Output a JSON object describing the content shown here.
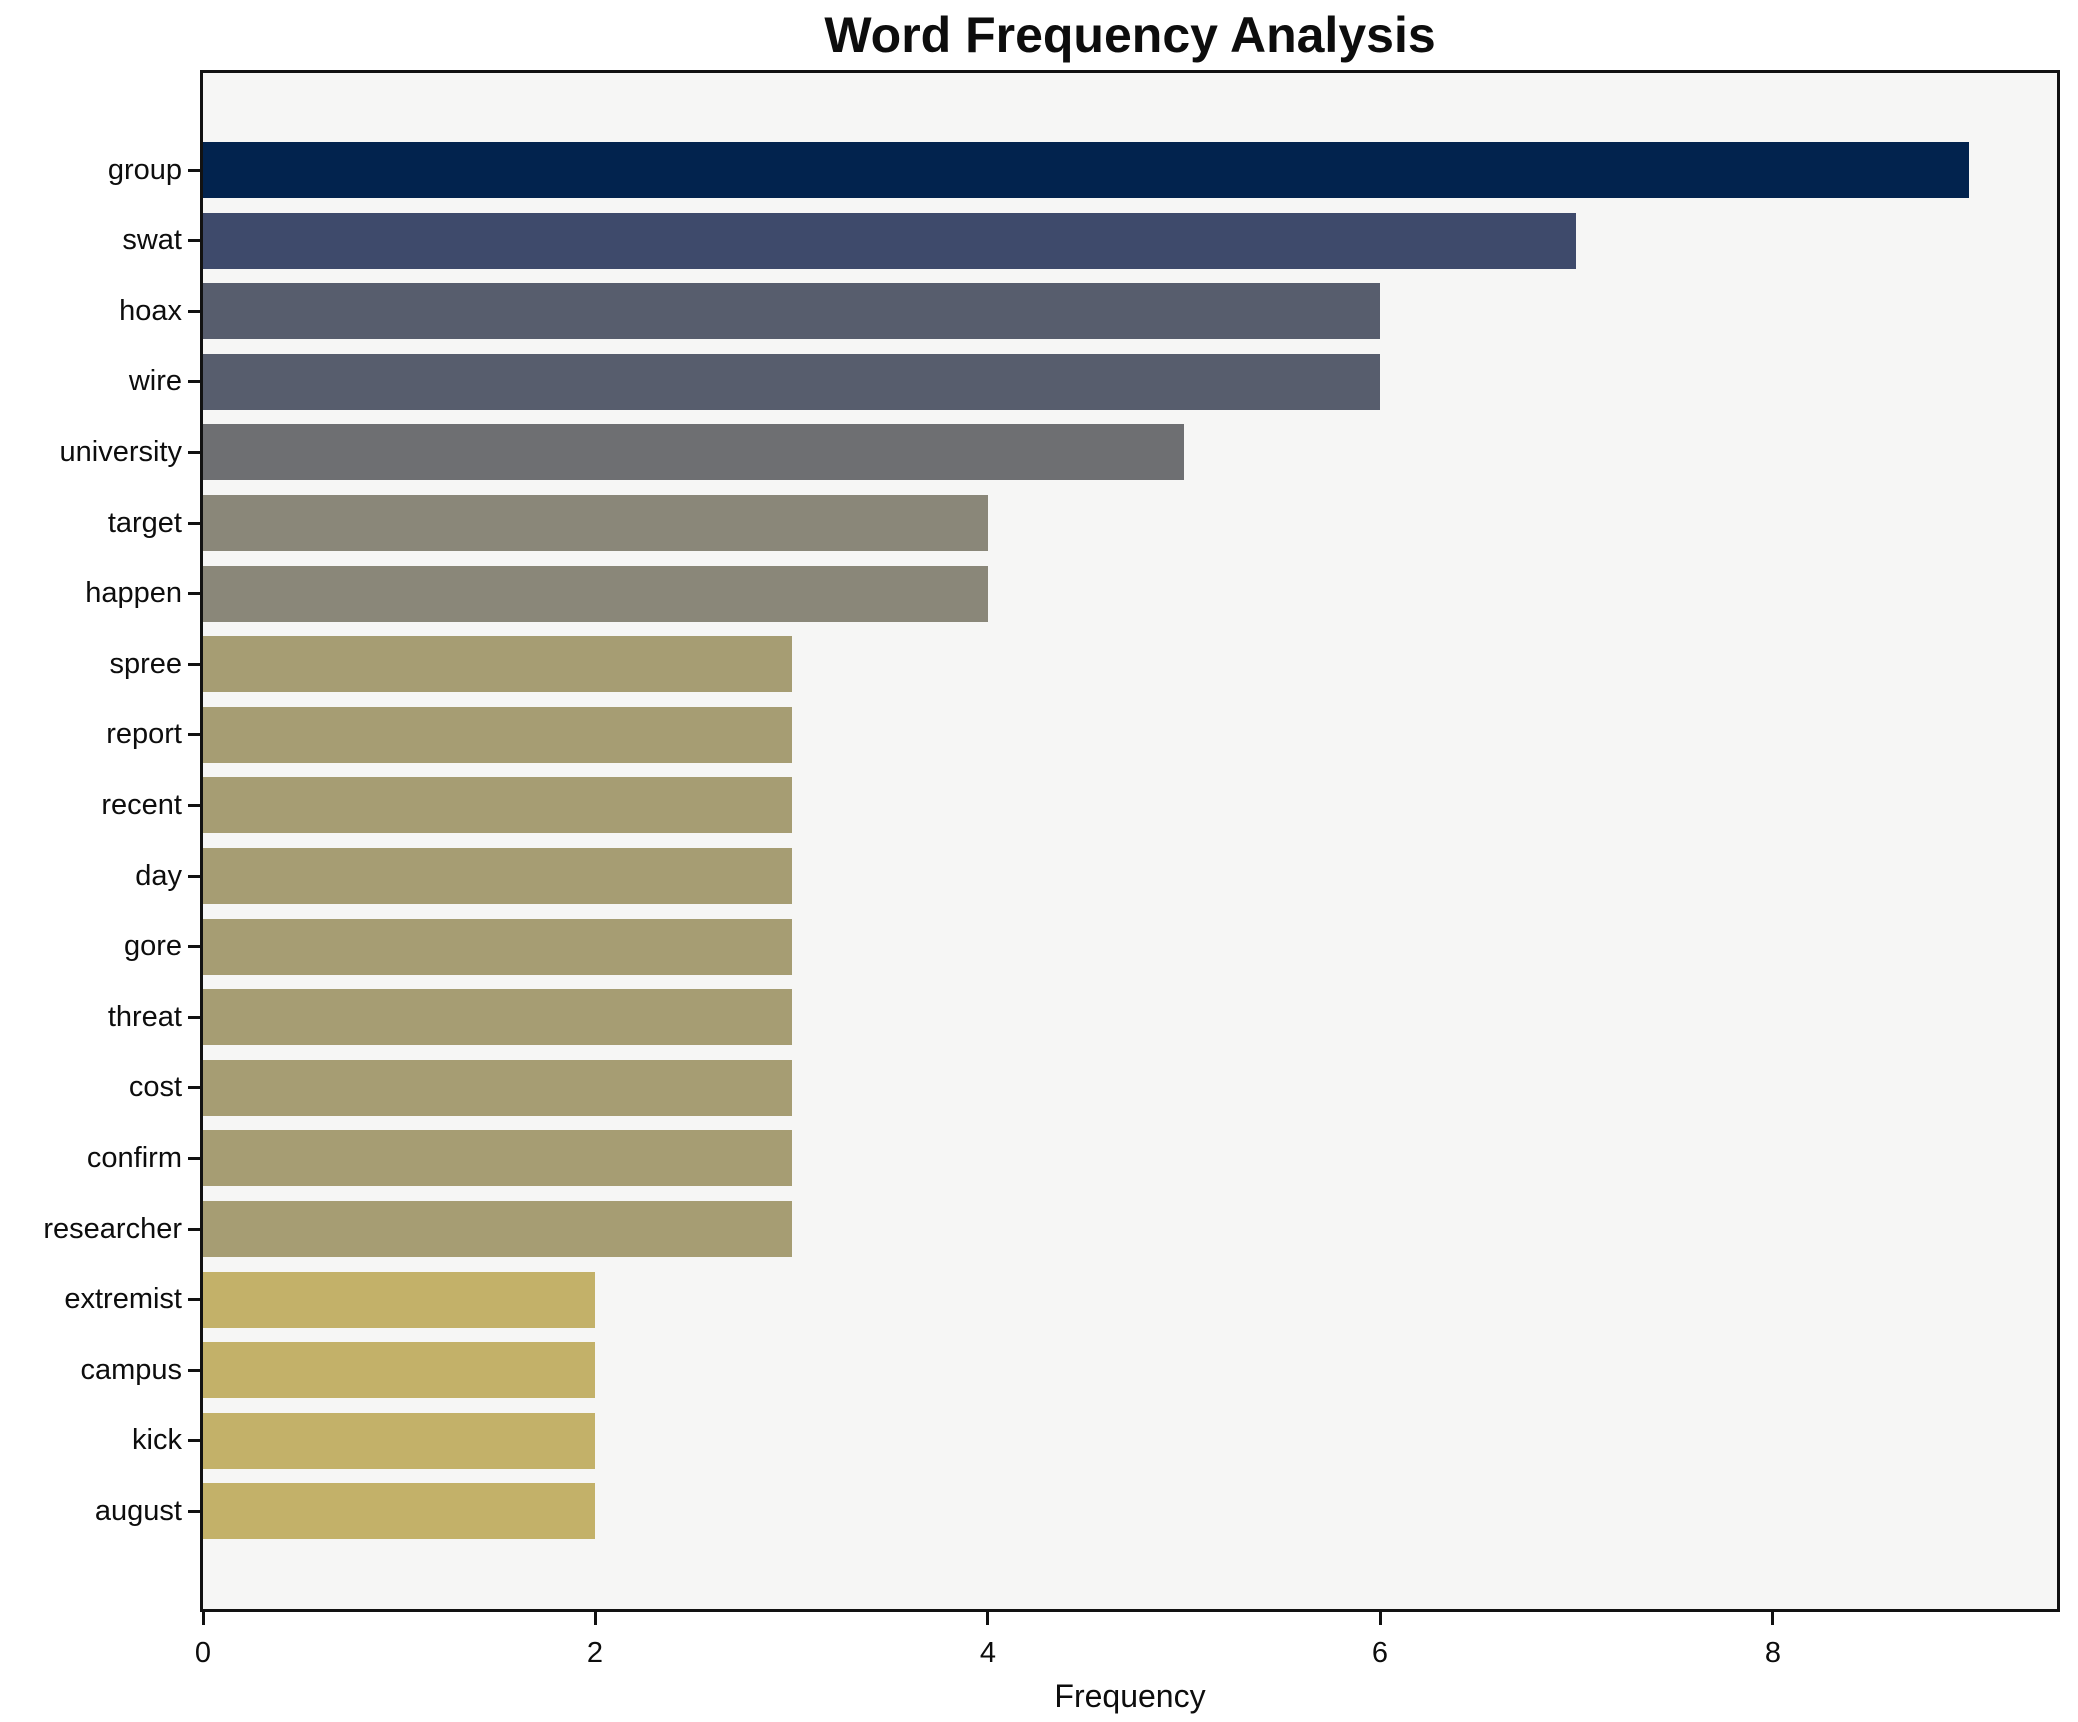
{
  "chart_data": {
    "type": "bar",
    "orientation": "horizontal",
    "title": "Word Frequency Analysis",
    "xlabel": "Frequency",
    "ylabel": "",
    "categories": [
      "group",
      "swat",
      "hoax",
      "wire",
      "university",
      "target",
      "happen",
      "spree",
      "report",
      "recent",
      "day",
      "gore",
      "threat",
      "cost",
      "confirm",
      "researcher",
      "extremist",
      "campus",
      "kick",
      "august"
    ],
    "values": [
      9,
      7,
      6,
      6,
      5,
      4,
      4,
      3,
      3,
      3,
      3,
      3,
      3,
      3,
      3,
      3,
      2,
      2,
      2,
      2
    ],
    "bar_colors": [
      "#02234e",
      "#3e4a6b",
      "#575d6d",
      "#575d6d",
      "#6e6f72",
      "#8a8779",
      "#8a8779",
      "#a69d73",
      "#a69d73",
      "#a69d73",
      "#a69d73",
      "#a69d73",
      "#a69d73",
      "#a69d73",
      "#a69d73",
      "#a69d73",
      "#c3b169",
      "#c3b169",
      "#c3b169",
      "#c3b169"
    ],
    "xlim": [
      0,
      9.45
    ],
    "x_ticks": [
      0,
      2,
      4,
      6,
      8
    ],
    "grid": false,
    "legend": false,
    "plot_bg": "#f6f6f5",
    "figure_bg": "#ffffff",
    "spine_color": "#121212",
    "text_color": "#0d0d0d"
  }
}
